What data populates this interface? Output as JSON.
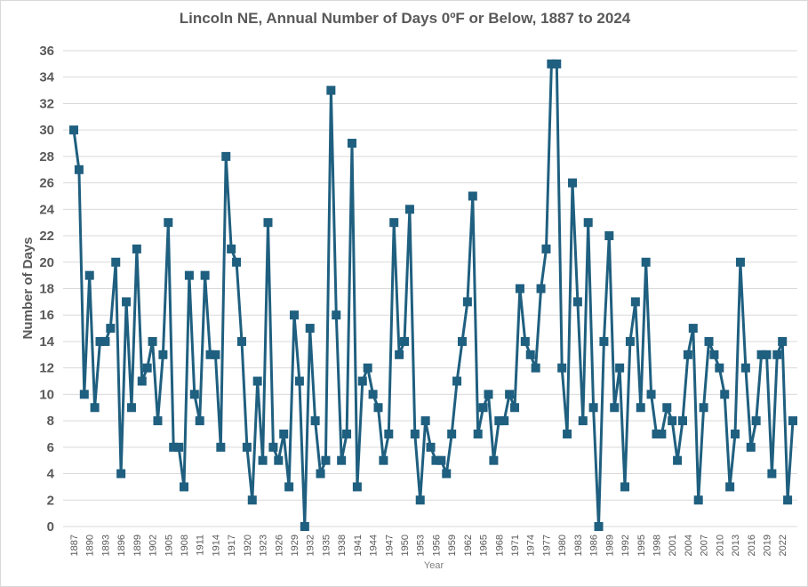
{
  "chart_data": {
    "type": "line",
    "title": "Lincoln NE, Annual Number of Days  0ºF or Below, 1887 to 2024",
    "xlabel": "Year",
    "ylabel": "Number of Days",
    "ylim": [
      0,
      36
    ],
    "yticks": [
      0,
      2,
      4,
      6,
      8,
      10,
      12,
      14,
      16,
      18,
      20,
      22,
      24,
      26,
      28,
      30,
      32,
      34,
      36
    ],
    "xtick_step_years": 3,
    "grid": "horizontal",
    "legend": "none",
    "color": "#1f5f7f",
    "marker": "square",
    "x_start": 1887,
    "x_end": 2024,
    "values": [
      30,
      27,
      10,
      19,
      9,
      14,
      14,
      15,
      20,
      4,
      17,
      9,
      21,
      11,
      12,
      14,
      8,
      13,
      23,
      6,
      6,
      3,
      19,
      10,
      8,
      19,
      13,
      13,
      6,
      28,
      21,
      20,
      14,
      6,
      2,
      11,
      5,
      23,
      6,
      5,
      7,
      3,
      16,
      11,
      0,
      15,
      8,
      4,
      5,
      33,
      16,
      5,
      7,
      29,
      3,
      11,
      12,
      10,
      9,
      5,
      7,
      23,
      13,
      14,
      24,
      7,
      2,
      8,
      6,
      5,
      5,
      4,
      7,
      11,
      14,
      17,
      25,
      7,
      9,
      10,
      5,
      8,
      8,
      10,
      9,
      18,
      14,
      13,
      12,
      18,
      21,
      35,
      35,
      12,
      7,
      26,
      17,
      8,
      23,
      9,
      0,
      14,
      22,
      9,
      12,
      3,
      14,
      17,
      9,
      20,
      10,
      7,
      7,
      9,
      8,
      5,
      8,
      13,
      15,
      2,
      9,
      14,
      13,
      12,
      10,
      3,
      7,
      20,
      12,
      6,
      8,
      13,
      13,
      4,
      13,
      14,
      2,
      8
    ]
  }
}
